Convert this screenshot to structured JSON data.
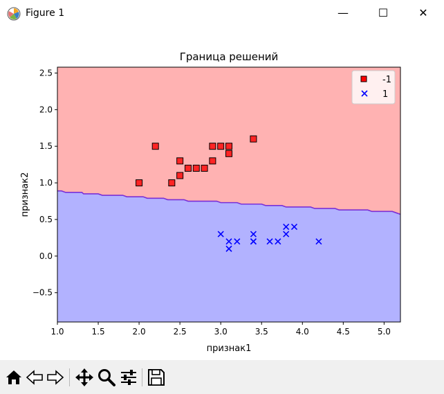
{
  "window": {
    "title": "Figure 1",
    "controls": {
      "minimize": "—",
      "maximize": "☐",
      "close": "✕"
    }
  },
  "toolbar": {
    "buttons": [
      {
        "name": "home-icon"
      },
      {
        "name": "back-icon"
      },
      {
        "name": "forward-icon"
      },
      {
        "name": "pan-icon"
      },
      {
        "name": "zoom-icon"
      },
      {
        "name": "configure-subplots-icon"
      },
      {
        "name": "save-icon"
      }
    ]
  },
  "chart_data": {
    "type": "scatter",
    "title": "Граница решений",
    "xlabel": "признак1",
    "ylabel": "признак2",
    "xlim": [
      1.0,
      5.2
    ],
    "ylim": [
      -0.9,
      2.58
    ],
    "xticks": [
      "1.0",
      "1.5",
      "2.0",
      "2.5",
      "3.0",
      "3.5",
      "4.0",
      "4.5",
      "5.0"
    ],
    "yticks": [
      "−0.5",
      "0.0",
      "0.5",
      "1.0",
      "1.5",
      "2.0",
      "2.5"
    ],
    "xtick_values": [
      1.0,
      1.5,
      2.0,
      2.5,
      3.0,
      3.5,
      4.0,
      4.5,
      5.0
    ],
    "ytick_values": [
      -0.5,
      0.0,
      0.5,
      1.0,
      1.5,
      2.0,
      2.5
    ],
    "grid": false,
    "legend_position": "top-right",
    "region_colors": {
      "-1": "#ffb2b2",
      "1": "#b2b2ff"
    },
    "boundary_color": "#7a2fd6",
    "decision_boundary": {
      "x": [
        1.0,
        1.05,
        1.1,
        1.3,
        1.32,
        1.5,
        1.55,
        1.8,
        1.85,
        2.05,
        2.1,
        2.3,
        2.35,
        2.55,
        2.6,
        2.95,
        3.0,
        3.2,
        3.25,
        3.5,
        3.55,
        3.75,
        3.8,
        4.1,
        4.15,
        4.4,
        4.45,
        4.8,
        4.85,
        5.1,
        5.15,
        5.2
      ],
      "y": [
        0.89,
        0.89,
        0.87,
        0.87,
        0.85,
        0.85,
        0.83,
        0.83,
        0.81,
        0.81,
        0.79,
        0.79,
        0.77,
        0.77,
        0.75,
        0.75,
        0.73,
        0.73,
        0.71,
        0.71,
        0.69,
        0.69,
        0.67,
        0.67,
        0.65,
        0.65,
        0.63,
        0.63,
        0.61,
        0.61,
        0.59,
        0.57
      ]
    },
    "series": [
      {
        "name": "-1",
        "marker": "square",
        "color": "#ff0000",
        "x": [
          2.0,
          2.2,
          2.4,
          2.5,
          2.5,
          2.6,
          2.7,
          2.8,
          2.9,
          2.9,
          3.0,
          3.1,
          3.1,
          3.4
        ],
        "y": [
          1.0,
          1.5,
          1.0,
          1.1,
          1.3,
          1.2,
          1.2,
          1.2,
          1.3,
          1.5,
          1.5,
          1.5,
          1.4,
          1.6
        ]
      },
      {
        "name": "1",
        "marker": "x",
        "color": "#0000ff",
        "x": [
          3.0,
          3.1,
          3.1,
          3.2,
          3.4,
          3.4,
          3.4,
          3.6,
          3.7,
          3.8,
          3.8,
          3.9,
          4.2
        ],
        "y": [
          0.3,
          0.2,
          0.1,
          0.2,
          0.2,
          0.2,
          0.3,
          0.2,
          0.2,
          0.4,
          0.3,
          0.4,
          0.2
        ]
      }
    ]
  }
}
